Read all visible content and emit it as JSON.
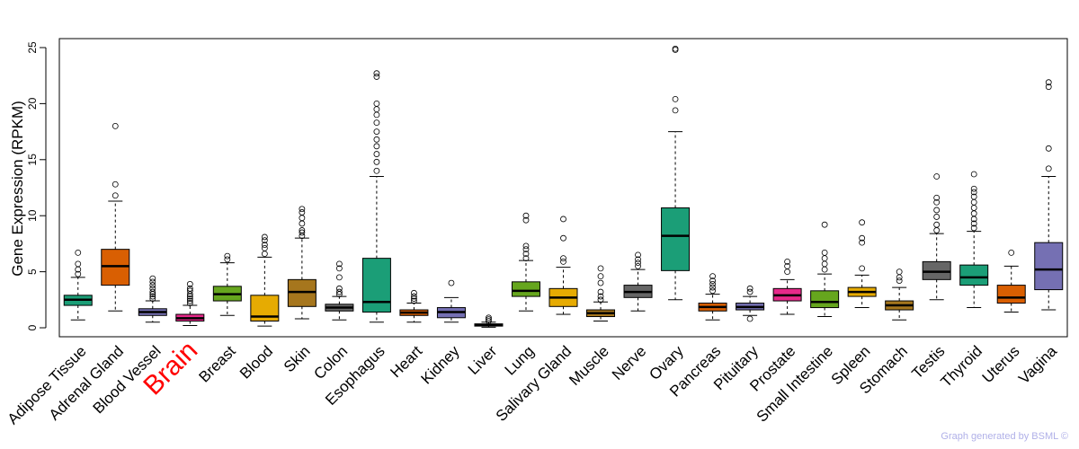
{
  "chart_data": {
    "type": "box",
    "ylabel": "Gene Expression (RPKM)",
    "ylim": [
      -0.8,
      25.8
    ],
    "yticks": [
      0,
      5,
      10,
      15,
      20,
      25
    ],
    "highlight": "Brain",
    "series": [
      {
        "name": "Adipose Tissue",
        "color": "#1b9e77",
        "whisker_low": 0.7,
        "q1": 2.0,
        "median": 2.5,
        "q3": 2.9,
        "whisker_high": 4.5,
        "outliers": [
          4.8,
          5.2,
          5.7,
          6.7
        ]
      },
      {
        "name": "Adrenal Gland",
        "color": "#d95f02",
        "whisker_low": 1.5,
        "q1": 3.8,
        "median": 5.5,
        "q3": 7.0,
        "whisker_high": 11.3,
        "outliers": [
          11.8,
          12.8,
          18.0
        ]
      },
      {
        "name": "Blood Vessel",
        "color": "#7570b3",
        "whisker_low": 0.5,
        "q1": 1.1,
        "median": 1.4,
        "q3": 1.7,
        "whisker_high": 2.4,
        "outliers": [
          2.6,
          2.8,
          3.0,
          3.2,
          3.5,
          3.8,
          4.1,
          4.4
        ]
      },
      {
        "name": "Brain",
        "color": "#e7298a",
        "whisker_low": 0.2,
        "q1": 0.6,
        "median": 0.85,
        "q3": 1.2,
        "whisker_high": 2.0,
        "outliers": [
          2.2,
          2.4,
          2.6,
          2.8,
          3.0,
          3.3,
          3.5,
          3.9
        ]
      },
      {
        "name": "Breast",
        "color": "#66a61e",
        "whisker_low": 1.1,
        "q1": 2.4,
        "median": 3.0,
        "q3": 3.7,
        "whisker_high": 5.8,
        "outliers": [
          6.1,
          6.4
        ]
      },
      {
        "name": "Blood",
        "color": "#e6ab02",
        "whisker_low": 0.15,
        "q1": 0.6,
        "median": 1.0,
        "q3": 2.9,
        "whisker_high": 6.3,
        "outliers": [
          6.6,
          7.1,
          7.4,
          7.8,
          8.1
        ]
      },
      {
        "name": "Skin",
        "color": "#a6761d",
        "whisker_low": 0.8,
        "q1": 1.9,
        "median": 3.2,
        "q3": 4.3,
        "whisker_high": 8.0,
        "outliers": [
          8.2,
          8.5,
          8.7,
          9.3,
          9.8,
          10.3,
          10.6
        ]
      },
      {
        "name": "Colon",
        "color": "#666666",
        "whisker_low": 0.7,
        "q1": 1.5,
        "median": 1.8,
        "q3": 2.1,
        "whisker_high": 2.8,
        "outliers": [
          3.0,
          3.2,
          3.5,
          4.5,
          5.3,
          5.7
        ]
      },
      {
        "name": "Esophagus",
        "color": "#1b9e77",
        "whisker_low": 0.5,
        "q1": 1.4,
        "median": 2.3,
        "q3": 6.2,
        "whisker_high": 13.5,
        "outliers": [
          14.0,
          14.8,
          15.5,
          16.2,
          16.8,
          17.5,
          18.3,
          19.0,
          19.5,
          20.0,
          22.4,
          22.7
        ]
      },
      {
        "name": "Heart",
        "color": "#d95f02",
        "whisker_low": 0.5,
        "q1": 1.1,
        "median": 1.35,
        "q3": 1.6,
        "whisker_high": 2.2,
        "outliers": [
          2.4,
          2.6,
          2.8,
          3.1
        ]
      },
      {
        "name": "Kidney",
        "color": "#7570b3",
        "whisker_low": 0.5,
        "q1": 0.9,
        "median": 1.4,
        "q3": 1.8,
        "whisker_high": 2.7,
        "outliers": [
          4.0
        ]
      },
      {
        "name": "Liver",
        "color": "#e7298a",
        "whisker_low": 0.05,
        "q1": 0.15,
        "median": 0.25,
        "q3": 0.35,
        "whisker_high": 0.5,
        "outliers": [
          0.6,
          0.75,
          0.9
        ]
      },
      {
        "name": "Lung",
        "color": "#66a61e",
        "whisker_low": 1.5,
        "q1": 2.8,
        "median": 3.3,
        "q3": 4.1,
        "whisker_high": 6.0,
        "outliers": [
          6.2,
          6.6,
          7.0,
          7.3,
          9.6,
          10.0
        ]
      },
      {
        "name": "Salivary Gland",
        "color": "#e6ab02",
        "whisker_low": 1.2,
        "q1": 1.9,
        "median": 2.7,
        "q3": 3.5,
        "whisker_high": 5.4,
        "outliers": [
          5.9,
          6.2,
          8.0,
          9.7
        ]
      },
      {
        "name": "Muscle",
        "color": "#a6761d",
        "whisker_low": 0.6,
        "q1": 1.0,
        "median": 1.3,
        "q3": 1.6,
        "whisker_high": 2.3,
        "outliers": [
          2.5,
          2.8,
          3.2,
          4.0,
          4.6,
          5.3
        ]
      },
      {
        "name": "Nerve",
        "color": "#666666",
        "whisker_low": 1.5,
        "q1": 2.7,
        "median": 3.2,
        "q3": 3.8,
        "whisker_high": 5.2,
        "outliers": [
          5.5,
          5.8,
          6.1,
          6.5
        ]
      },
      {
        "name": "Ovary",
        "color": "#1b9e77",
        "whisker_low": 2.5,
        "q1": 5.1,
        "median": 8.2,
        "q3": 10.7,
        "whisker_high": 17.5,
        "outliers": [
          19.4,
          20.4,
          24.8,
          24.9
        ]
      },
      {
        "name": "Pancreas",
        "color": "#d95f02",
        "whisker_low": 0.7,
        "q1": 1.5,
        "median": 1.85,
        "q3": 2.2,
        "whisker_high": 3.0,
        "outliers": [
          3.3,
          3.6,
          3.9,
          4.2,
          4.6
        ]
      },
      {
        "name": "Pituitary",
        "color": "#7570b3",
        "whisker_low": 1.1,
        "q1": 1.6,
        "median": 1.85,
        "q3": 2.2,
        "whisker_high": 2.8,
        "outliers": [
          0.8,
          3.2,
          3.5
        ]
      },
      {
        "name": "Prostate",
        "color": "#e7298a",
        "whisker_low": 1.2,
        "q1": 2.4,
        "median": 2.9,
        "q3": 3.5,
        "whisker_high": 4.3,
        "outliers": [
          5.0,
          5.5,
          5.9
        ]
      },
      {
        "name": "Small Intestine",
        "color": "#66a61e",
        "whisker_low": 1.0,
        "q1": 1.8,
        "median": 2.3,
        "q3": 3.3,
        "whisker_high": 4.8,
        "outliers": [
          5.2,
          5.7,
          6.2,
          6.7,
          9.2
        ]
      },
      {
        "name": "Spleen",
        "color": "#e6ab02",
        "whisker_low": 1.8,
        "q1": 2.8,
        "median": 3.2,
        "q3": 3.6,
        "whisker_high": 4.7,
        "outliers": [
          5.3,
          7.6,
          8.0,
          9.4
        ]
      },
      {
        "name": "Stomach",
        "color": "#a6761d",
        "whisker_low": 0.7,
        "q1": 1.6,
        "median": 2.0,
        "q3": 2.4,
        "whisker_high": 3.6,
        "outliers": [
          4.2,
          4.5,
          5.0
        ]
      },
      {
        "name": "Testis",
        "color": "#666666",
        "whisker_low": 2.5,
        "q1": 4.3,
        "median": 5.0,
        "q3": 5.9,
        "whisker_high": 8.4,
        "outliers": [
          8.7,
          9.2,
          9.9,
          10.5,
          11.2,
          11.6,
          13.5
        ]
      },
      {
        "name": "Thyroid",
        "color": "#1b9e77",
        "whisker_low": 1.8,
        "q1": 3.8,
        "median": 4.5,
        "q3": 5.6,
        "whisker_high": 8.6,
        "outliers": [
          8.9,
          9.3,
          9.7,
          10.2,
          10.7,
          11.2,
          11.7,
          12.1,
          12.4,
          13.7
        ]
      },
      {
        "name": "Uterus",
        "color": "#d95f02",
        "whisker_low": 1.4,
        "q1": 2.2,
        "median": 2.7,
        "q3": 3.8,
        "whisker_high": 5.5,
        "outliers": [
          6.7
        ]
      },
      {
        "name": "Vagina",
        "color": "#7570b3",
        "whisker_low": 1.6,
        "q1": 3.4,
        "median": 5.2,
        "q3": 7.6,
        "whisker_high": 13.5,
        "outliers": [
          14.2,
          16.0,
          21.5,
          21.9
        ]
      }
    ]
  },
  "footer": {
    "credit": "Graph generated by BSML ©"
  }
}
